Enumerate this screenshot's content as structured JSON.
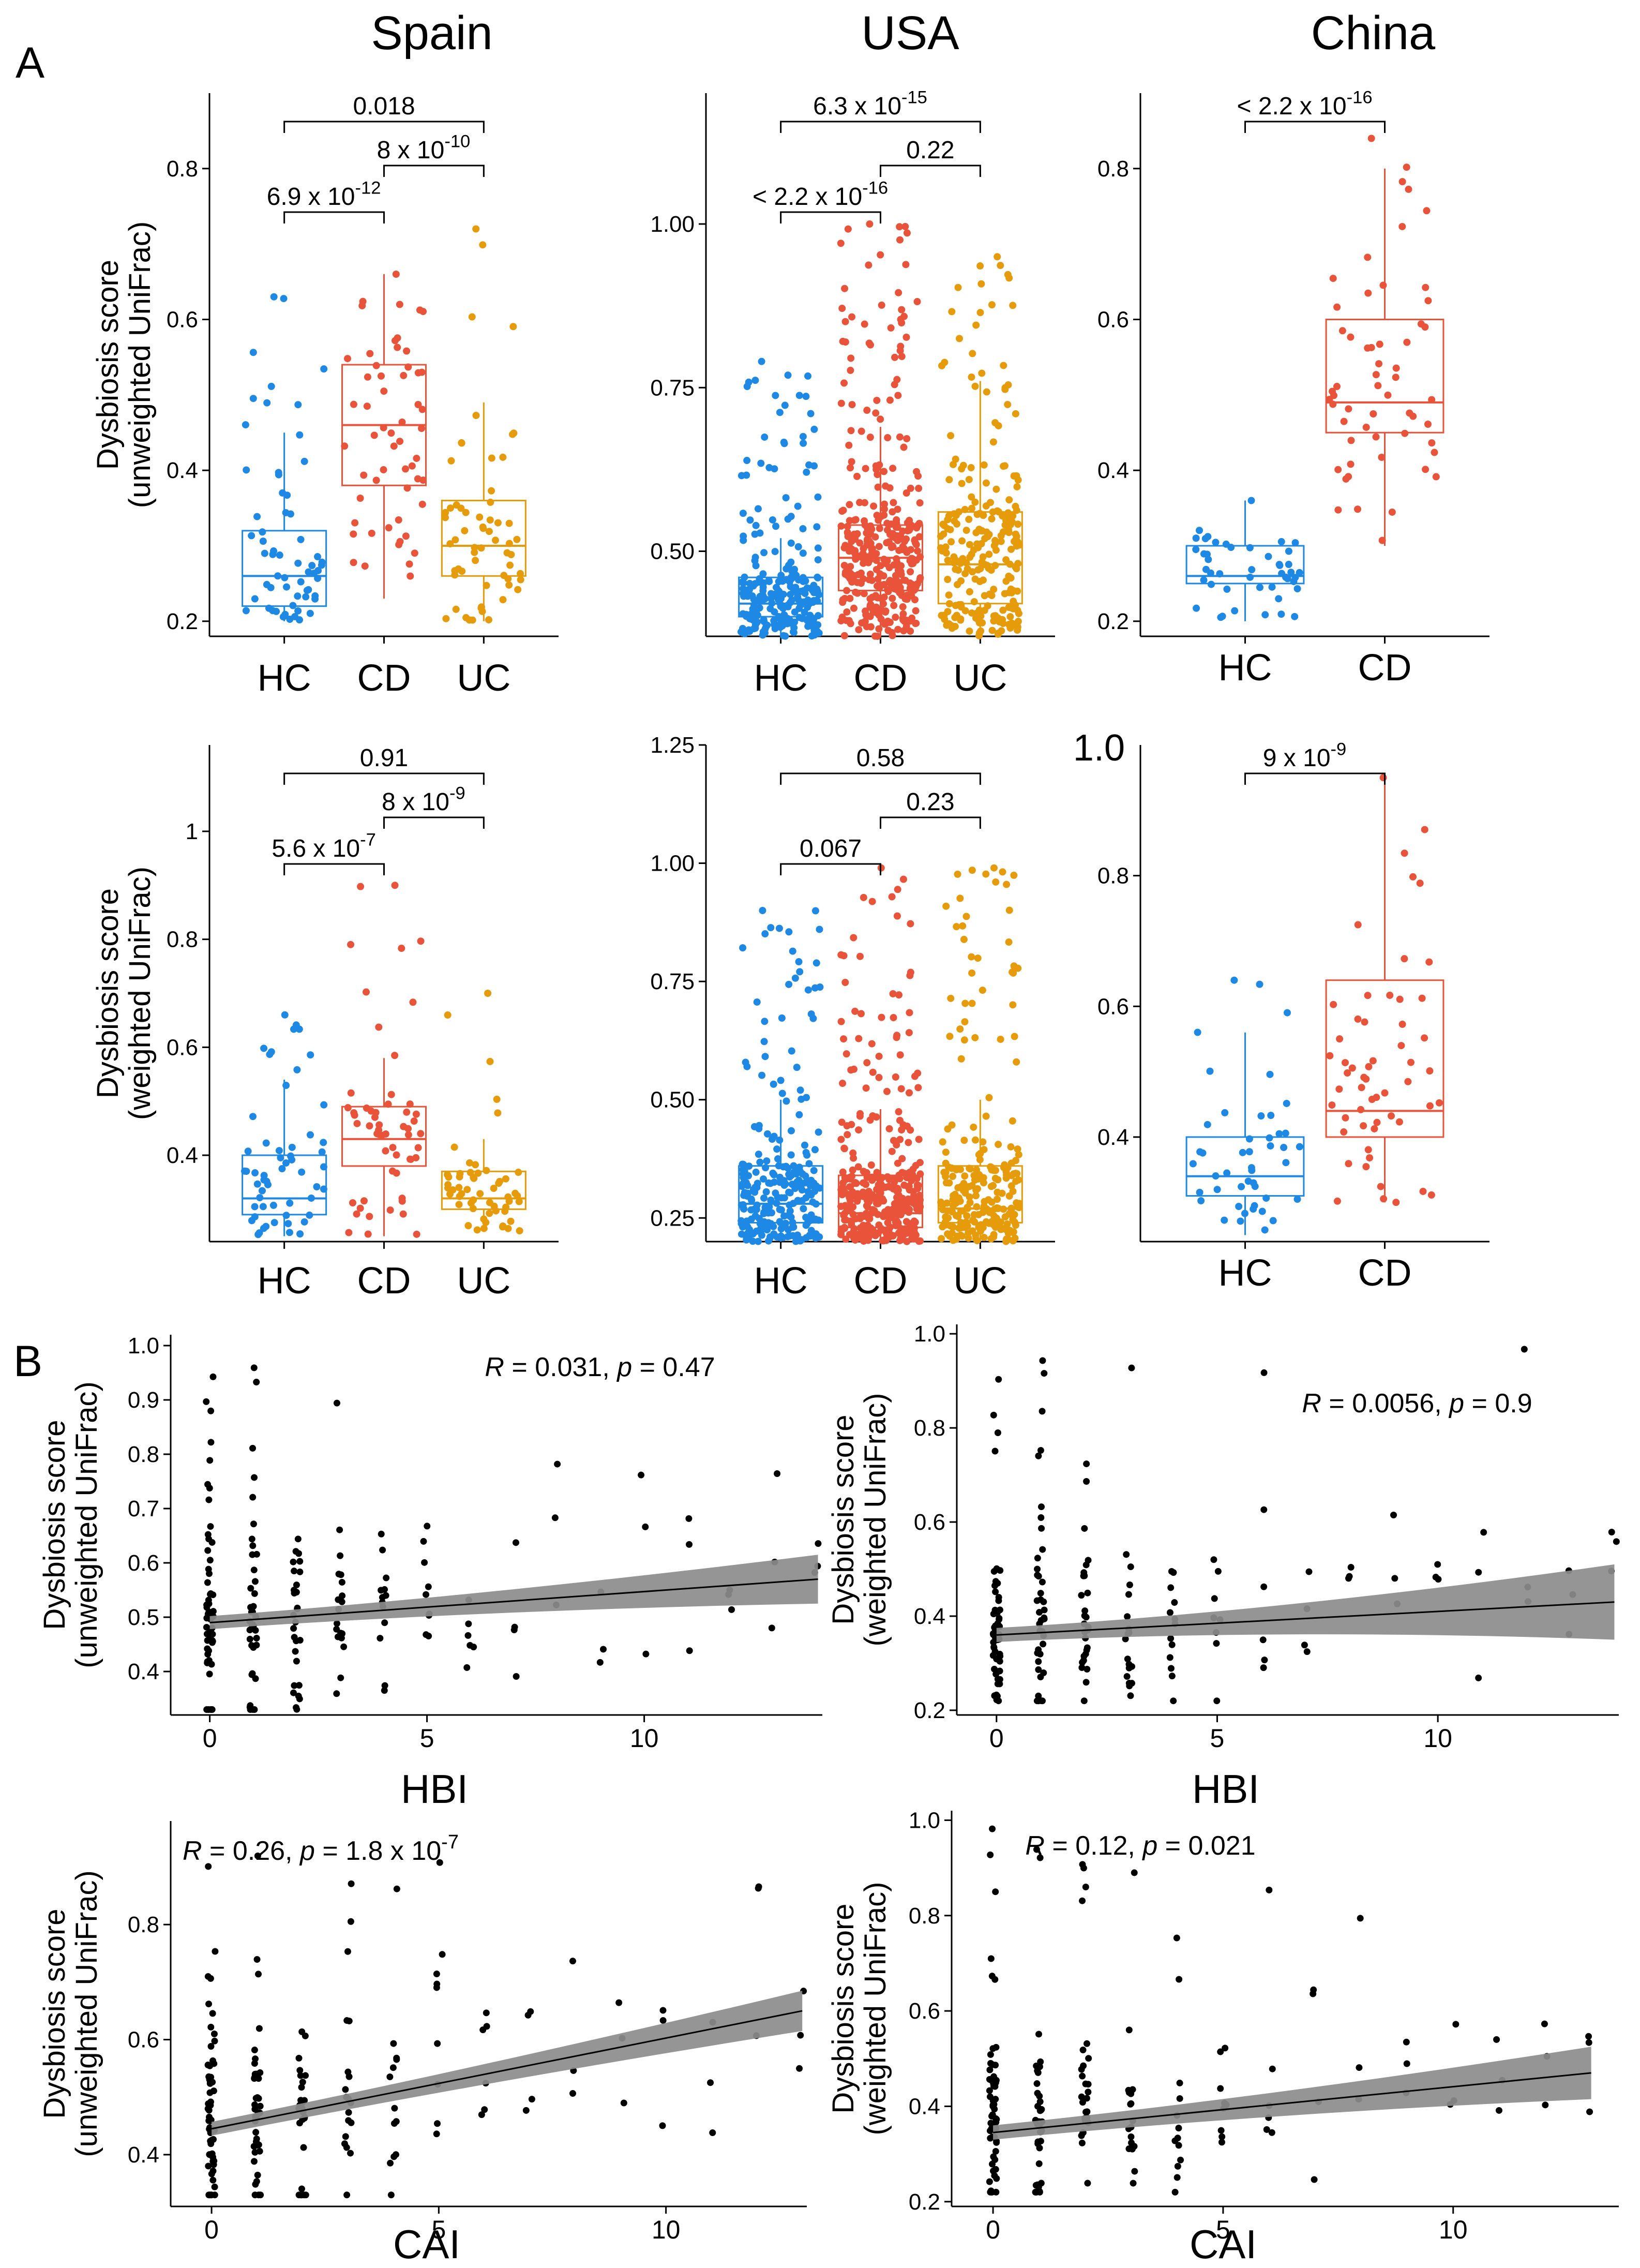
{
  "figure": {
    "panel_labels": [
      "A",
      "B"
    ],
    "colors": {
      "HC": "#1e88e5",
      "CD": "#e8533a",
      "UC": "#e69b0a",
      "point_B": "#000000",
      "band": "#8c8c8c"
    }
  },
  "chart_data": [
    {
      "id": "A1",
      "type": "box",
      "title": "Spain",
      "ylabel_lines": [
        "Dysbiosis score",
        "(unweighted UniFrac)"
      ],
      "categories": [
        "HC",
        "CD",
        "UC"
      ],
      "ylim": [
        0.18,
        0.9
      ],
      "yticks": [
        0.2,
        0.4,
        0.6,
        0.8
      ],
      "boxes": [
        {
          "q1": 0.22,
          "median": 0.26,
          "q3": 0.32,
          "lo": 0.2,
          "hi": 0.45,
          "n": 60,
          "min": 0.2,
          "max": 0.63
        },
        {
          "q1": 0.38,
          "median": 0.46,
          "q3": 0.54,
          "lo": 0.23,
          "hi": 0.66,
          "n": 55,
          "min": 0.23,
          "max": 0.66
        },
        {
          "q1": 0.26,
          "median": 0.3,
          "q3": 0.36,
          "lo": 0.2,
          "hi": 0.49,
          "n": 60,
          "min": 0.2,
          "max": 0.72
        }
      ],
      "comparisons": [
        {
          "from": 0,
          "to": 2,
          "label": "0.018",
          "level": 3
        },
        {
          "from": 1,
          "to": 2,
          "label": "8 x 10",
          "sup": "-10",
          "level": 2
        },
        {
          "from": 0,
          "to": 1,
          "label": "6.9 x 10",
          "sup": "-12",
          "level": 1
        }
      ]
    },
    {
      "id": "A2",
      "type": "box",
      "title": "USA",
      "categories": [
        "HC",
        "CD",
        "UC"
      ],
      "ylim": [
        0.37,
        1.2
      ],
      "yticks": [
        0.5,
        0.75,
        1.0
      ],
      "ytick_labels": [
        "0.50",
        "0.75",
        "1.00"
      ],
      "boxes": [
        {
          "q1": 0.4,
          "median": 0.42,
          "q3": 0.46,
          "lo": 0.37,
          "hi": 0.52,
          "n": 240,
          "min": 0.37,
          "max": 0.79
        },
        {
          "q1": 0.44,
          "median": 0.49,
          "q3": 0.54,
          "lo": 0.37,
          "hi": 0.69,
          "n": 360,
          "min": 0.37,
          "max": 1.0
        },
        {
          "q1": 0.42,
          "median": 0.48,
          "q3": 0.56,
          "lo": 0.37,
          "hi": 0.76,
          "n": 240,
          "min": 0.37,
          "max": 0.95
        }
      ],
      "comparisons": [
        {
          "from": 0,
          "to": 2,
          "label": "6.3 x 10",
          "sup": "-15",
          "level": 3
        },
        {
          "from": 1,
          "to": 2,
          "label": "0.22",
          "level": 2
        },
        {
          "from": 0,
          "to": 1,
          "label": "< 2.2 x 10",
          "sup": "-16",
          "level": 1
        }
      ]
    },
    {
      "id": "A3",
      "type": "box",
      "title": "China",
      "categories": [
        "HC",
        "CD"
      ],
      "ylim": [
        0.18,
        0.9
      ],
      "yticks": [
        0.2,
        0.4,
        0.6,
        0.8
      ],
      "boxes": [
        {
          "q1": 0.25,
          "median": 0.26,
          "q3": 0.3,
          "lo": 0.2,
          "hi": 0.36,
          "n": 45,
          "min": 0.2,
          "max": 0.36
        },
        {
          "q1": 0.45,
          "median": 0.49,
          "q3": 0.6,
          "lo": 0.3,
          "hi": 0.8,
          "n": 55,
          "min": 0.3,
          "max": 0.84
        }
      ],
      "comparisons": [
        {
          "from": 0,
          "to": 1,
          "label": "< 2.2 x 10",
          "sup": "-16",
          "level": 1
        }
      ]
    },
    {
      "id": "A4",
      "type": "box",
      "ylabel_lines": [
        "Dysbiosis score",
        "(weighted UniFrac)"
      ],
      "categories": [
        "HC",
        "CD",
        "UC"
      ],
      "ylim": [
        0.24,
        1.16
      ],
      "yticks": [
        0.4,
        0.6,
        0.8,
        1.0
      ],
      "boxes": [
        {
          "q1": 0.29,
          "median": 0.32,
          "q3": 0.4,
          "lo": 0.25,
          "hi": 0.54,
          "n": 55,
          "min": 0.25,
          "max": 0.66
        },
        {
          "q1": 0.38,
          "median": 0.43,
          "q3": 0.49,
          "lo": 0.25,
          "hi": 0.58,
          "n": 55,
          "min": 0.25,
          "max": 0.9
        },
        {
          "q1": 0.3,
          "median": 0.32,
          "q3": 0.37,
          "lo": 0.26,
          "hi": 0.43,
          "n": 55,
          "min": 0.26,
          "max": 0.7
        }
      ],
      "comparisons": [
        {
          "from": 0,
          "to": 2,
          "label": "0.91",
          "level": 3
        },
        {
          "from": 1,
          "to": 2,
          "label": "8 x 10",
          "sup": "-9",
          "level": 2
        },
        {
          "from": 0,
          "to": 1,
          "label": "5.6 x 10",
          "sup": "-7",
          "level": 1
        }
      ]
    },
    {
      "id": "A5",
      "type": "box",
      "categories": [
        "HC",
        "CD",
        "UC"
      ],
      "ylim": [
        0.2,
        1.25
      ],
      "yticks": [
        0.25,
        0.5,
        0.75,
        1.0,
        1.25
      ],
      "ytick_labels": [
        "0.25",
        "0.50",
        "0.75",
        "1.00",
        "1.25"
      ],
      "boxes": [
        {
          "q1": 0.24,
          "median": 0.28,
          "q3": 0.36,
          "lo": 0.2,
          "hi": 0.5,
          "n": 240,
          "min": 0.2,
          "max": 0.9
        },
        {
          "q1": 0.23,
          "median": 0.26,
          "q3": 0.34,
          "lo": 0.2,
          "hi": 0.48,
          "n": 360,
          "min": 0.2,
          "max": 0.99
        },
        {
          "q1": 0.24,
          "median": 0.27,
          "q3": 0.36,
          "lo": 0.2,
          "hi": 0.5,
          "n": 240,
          "min": 0.2,
          "max": 0.99
        }
      ],
      "comparisons": [
        {
          "from": 0,
          "to": 2,
          "label": "0.58",
          "level": 3
        },
        {
          "from": 1,
          "to": 2,
          "label": "0.23",
          "level": 2
        },
        {
          "from": 0,
          "to": 1,
          "label": "0.067",
          "level": 1
        }
      ]
    },
    {
      "id": "A6",
      "type": "box",
      "categories": [
        "HC",
        "CD"
      ],
      "ylim": [
        0.24,
        1.0
      ],
      "yticks": [
        0.4,
        0.6,
        0.8
      ],
      "extra_tick_label": "1.0",
      "boxes": [
        {
          "q1": 0.31,
          "median": 0.34,
          "q3": 0.4,
          "lo": 0.25,
          "hi": 0.56,
          "n": 45,
          "min": 0.25,
          "max": 0.64
        },
        {
          "q1": 0.4,
          "median": 0.44,
          "q3": 0.64,
          "lo": 0.3,
          "hi": 0.95,
          "n": 55,
          "min": 0.3,
          "max": 0.95
        }
      ],
      "comparisons": [
        {
          "from": 0,
          "to": 1,
          "label": "9 x 10",
          "sup": "-9",
          "level": 1
        }
      ]
    },
    {
      "id": "B1",
      "type": "scatter",
      "xlabel": "HBI",
      "ylabel_lines": [
        "Dysbiosis score",
        "(unweighted UniFrac)"
      ],
      "xlim": [
        -0.9,
        14.1
      ],
      "ylim": [
        0.32,
        1.02
      ],
      "xticks": [
        0,
        5,
        10
      ],
      "yticks": [
        0.4,
        0.5,
        0.6,
        0.7,
        0.8,
        0.9,
        1.0
      ],
      "ytick_labels": [
        "0.4",
        "0.5",
        "0.6",
        "0.7",
        "0.8",
        "0.9",
        "1.0"
      ],
      "stat": {
        "R": "0.031",
        "p": "0.47"
      },
      "fit": {
        "x": [
          0,
          14
        ],
        "y": [
          0.49,
          0.57
        ],
        "se0": 0.012,
        "se1": 0.045
      },
      "max_x": 14,
      "y_min": 0.33,
      "y_max": 0.98
    },
    {
      "id": "B2",
      "type": "scatter",
      "xlabel": "HBI",
      "ylabel_lines": [
        "Dysbiosis score",
        "(weighted UniFrac)"
      ],
      "xlim": [
        -0.9,
        14.1
      ],
      "ylim": [
        0.19,
        1.02
      ],
      "xticks": [
        0,
        5,
        10
      ],
      "yticks": [
        0.2,
        0.4,
        0.6,
        0.8,
        1.0
      ],
      "ytick_labels": [
        "0.2",
        "0.4",
        "0.6",
        "0.8",
        "1.0"
      ],
      "stat": {
        "R": "0.0056",
        "p": "0.9"
      },
      "fit": {
        "x": [
          0,
          14
        ],
        "y": [
          0.36,
          0.43
        ],
        "se0": 0.015,
        "se1": 0.08
      },
      "max_x": 14,
      "y_min": 0.22,
      "y_max": 0.99
    },
    {
      "id": "B3",
      "type": "scatter",
      "xlabel": "CAI",
      "ylabel_lines": [
        "Dysbiosis score",
        "(unweighted UniFrac)"
      ],
      "xlim": [
        -0.9,
        13.1
      ],
      "ylim": [
        0.31,
        0.98
      ],
      "xticks": [
        0,
        5,
        10
      ],
      "yticks": [
        0.4,
        0.6,
        0.8
      ],
      "stat": {
        "R": "0.26",
        "p": "1.8 x 10",
        "p_sup": "-7"
      },
      "fit": {
        "x": [
          0,
          13
        ],
        "y": [
          0.445,
          0.65
        ],
        "se0": 0.012,
        "se1": 0.035
      },
      "max_x": 13,
      "y_min": 0.33,
      "y_max": 0.95
    },
    {
      "id": "B4",
      "type": "scatter",
      "xlabel": "CAI",
      "ylabel_lines": [
        "Dysbiosis score",
        "(weighted UniFrac)"
      ],
      "xlim": [
        -0.9,
        13.6
      ],
      "ylim": [
        0.19,
        1.02
      ],
      "xticks": [
        0,
        5,
        10
      ],
      "yticks": [
        0.2,
        0.4,
        0.6,
        0.8,
        1.0
      ],
      "ytick_labels": [
        "0.2",
        "0.4",
        "0.6",
        "0.8",
        "1.0"
      ],
      "stat": {
        "R": "0.12",
        "p": "0.021"
      },
      "fit": {
        "x": [
          0,
          13
        ],
        "y": [
          0.345,
          0.47
        ],
        "se0": 0.015,
        "se1": 0.055
      },
      "max_x": 13,
      "y_min": 0.22,
      "y_max": 0.99
    }
  ]
}
